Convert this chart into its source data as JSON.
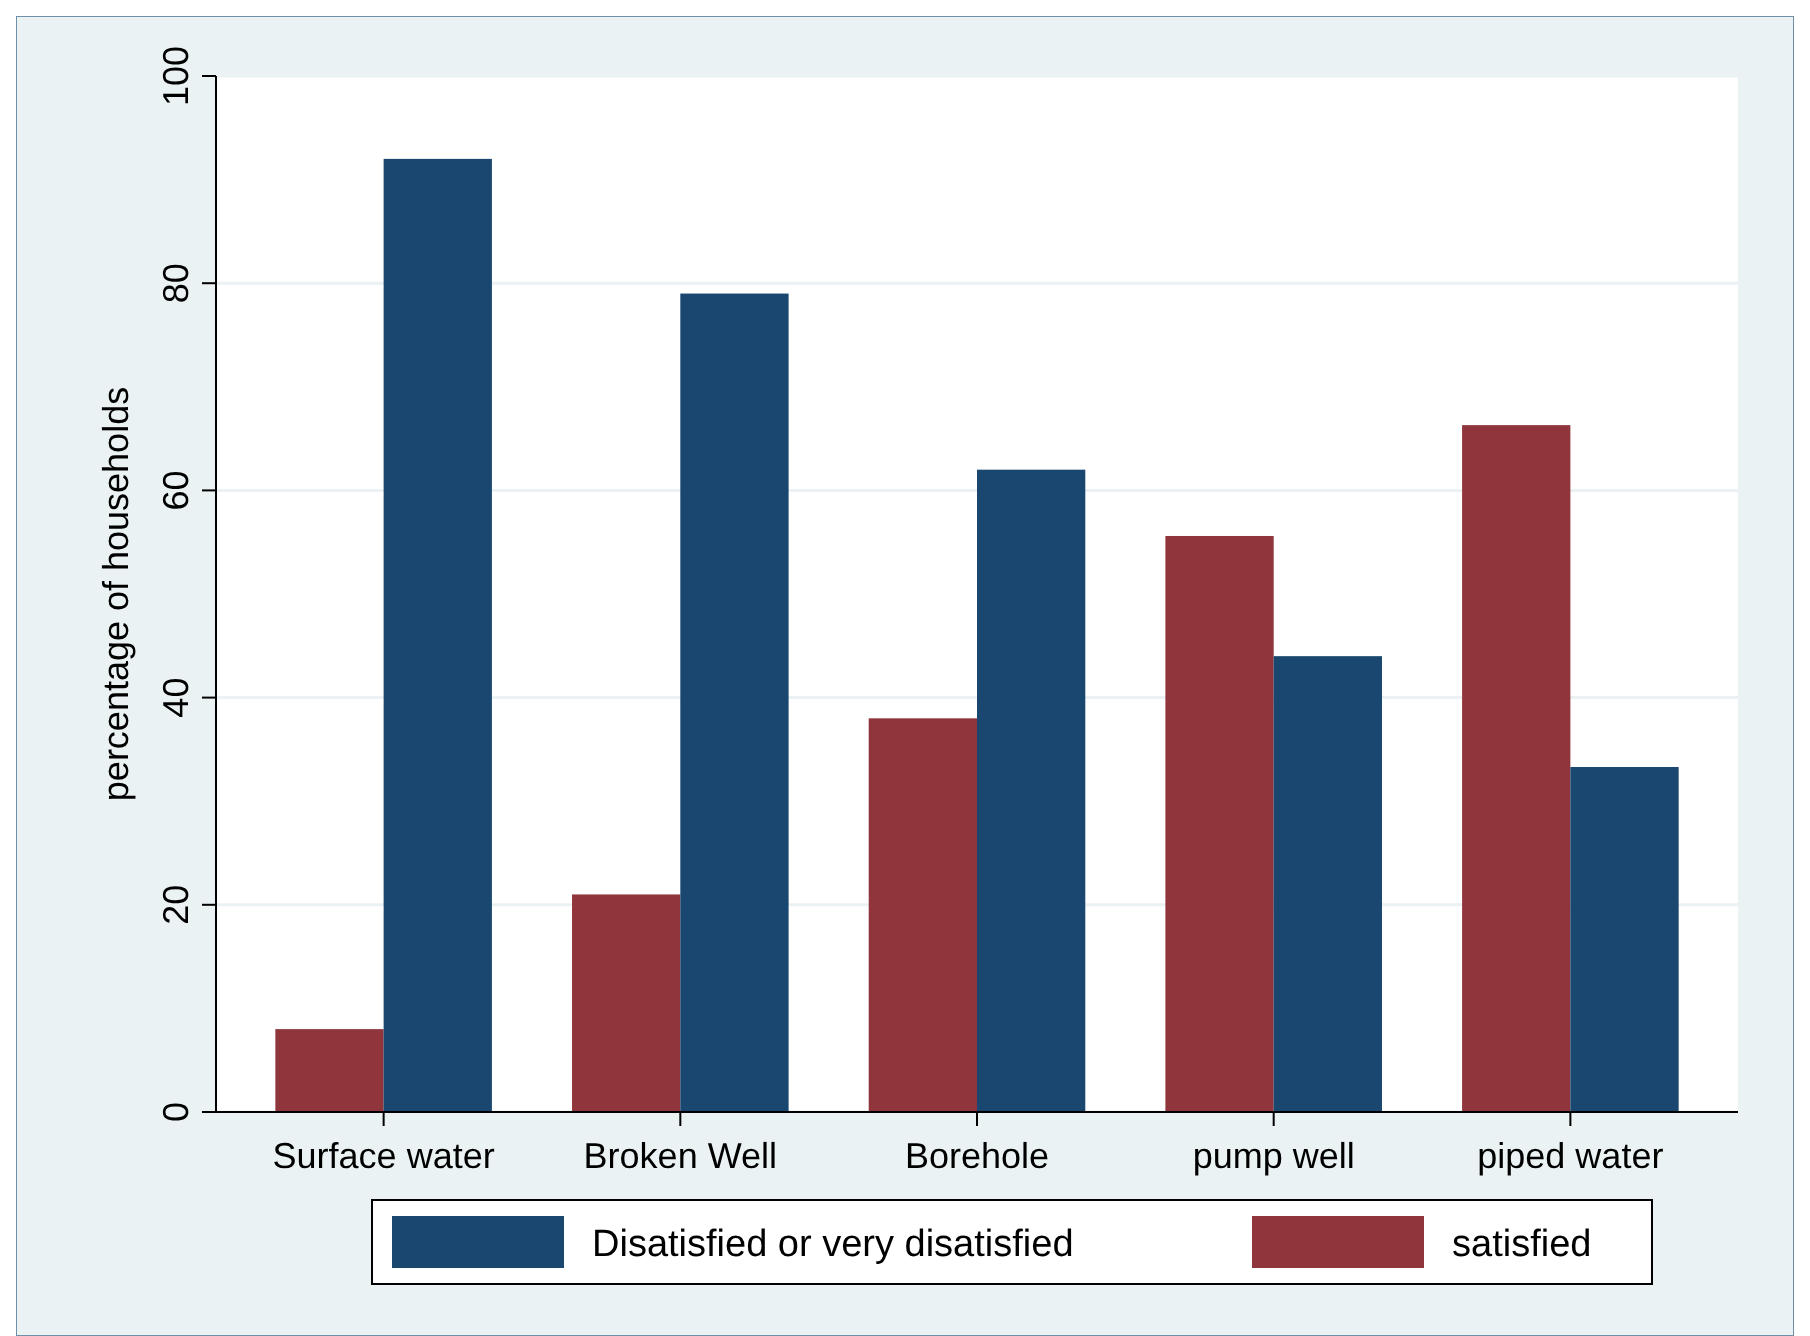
{
  "chart_data": {
    "type": "bar",
    "ylabel": "percentage of households",
    "categories": [
      "Surface water",
      "Broken Well",
      "Borehole",
      "pump well",
      "piped water"
    ],
    "series": [
      {
        "name": "satisfied",
        "color": "#90353b",
        "values": [
          8,
          21,
          38,
          55.6,
          66.3
        ]
      },
      {
        "name": "Disatisfied or very disatisfied",
        "color": "#1a476f",
        "values": [
          92,
          79,
          62,
          44,
          33.3
        ]
      }
    ],
    "ylim": [
      0,
      100
    ],
    "yticks": [
      0,
      20,
      40,
      60,
      80,
      100
    ],
    "grid": "y",
    "legend": "bottom"
  }
}
